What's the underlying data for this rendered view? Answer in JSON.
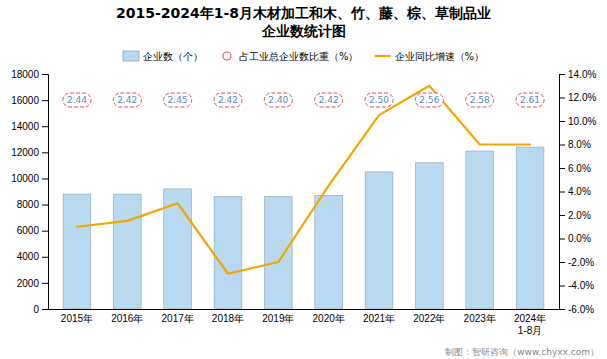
{
  "chart_data": {
    "type": "bar",
    "title": "2015-2024年1-8月木材加工和木、竹、藤、棕、草制品业",
    "subtitle": "企业数统计图",
    "categories": [
      "2015年",
      "2016年",
      "2017年",
      "2018年",
      "2019年",
      "2020年",
      "2021年",
      "2022年",
      "2023年",
      "2024年\n1-8月"
    ],
    "series": [
      {
        "name": "企业数（个）",
        "type": "bar",
        "color": "#b8d9f0",
        "values": [
          8800,
          8800,
          9200,
          8600,
          8600,
          8700,
          10500,
          11200,
          12100,
          12400
        ]
      },
      {
        "name": "占工业总企业数比重（%）",
        "type": "label",
        "color": "#e05050",
        "marker": "circle",
        "values": [
          2.44,
          2.42,
          2.45,
          2.42,
          2.4,
          2.42,
          2.5,
          2.56,
          2.58,
          2.61
        ],
        "value_labels": [
          "2.44",
          "2.42",
          "2.45",
          "2.42",
          "2.40",
          "2.42",
          "2.50",
          "2.56",
          "2.58",
          "2.61"
        ]
      },
      {
        "name": "企业同比增速（%）",
        "type": "line",
        "axis": "y2",
        "color": "#f0a800",
        "values": [
          1.0,
          1.5,
          3.0,
          -3.0,
          -2.0,
          4.5,
          10.5,
          13.0,
          8.0,
          8.0
        ]
      }
    ],
    "ylim": [
      0,
      18000
    ],
    "yticks": [
      0,
      2000,
      4000,
      6000,
      8000,
      10000,
      12000,
      14000,
      16000,
      18000
    ],
    "y2lim": [
      -6.0,
      14.0
    ],
    "y2ticks": [
      {
        "value": -6,
        "label": "-6.0%"
      },
      {
        "value": -4,
        "label": "-4.0%"
      },
      {
        "value": -2,
        "label": "-2.0%"
      },
      {
        "value": 0,
        "label": "0.0%"
      },
      {
        "value": 2,
        "label": "2.0%"
      },
      {
        "value": 4,
        "label": "4.0%"
      },
      {
        "value": 6,
        "label": "6.0%"
      },
      {
        "value": 8,
        "label": "8.0%"
      },
      {
        "value": 10,
        "label": "10.0%"
      },
      {
        "value": 12,
        "label": "12.0%"
      },
      {
        "value": 14,
        "label": "14.0%"
      }
    ],
    "grid": false,
    "legend": "top",
    "annotations": [
      "制图：智研咨询（www.chyxx.com）"
    ]
  }
}
